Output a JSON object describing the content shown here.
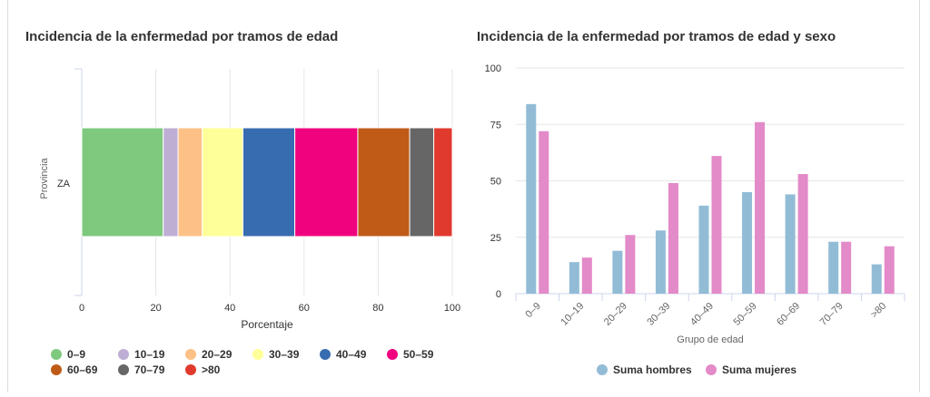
{
  "colors": {
    "grid": "#e6e6e6",
    "axis": "#ccd6eb",
    "text": "#333333",
    "label": "#666666"
  },
  "chart_data": [
    {
      "type": "bar",
      "orientation": "horizontal-stacked",
      "title": "Incidencia de la enfermedad por tramos de edad",
      "ylabel": "Provincia",
      "xlabel": "Porcentaje",
      "categories": [
        "ZA"
      ],
      "xlim": [
        0,
        100
      ],
      "xticks": [
        0,
        20,
        40,
        60,
        80,
        100
      ],
      "grid": true,
      "legend_position": "bottom-left",
      "series": [
        {
          "name": "0–9",
          "color": "#7fc97f",
          "values": [
            22
          ]
        },
        {
          "name": "10–19",
          "color": "#beaed4",
          "values": [
            4
          ]
        },
        {
          "name": "20–29",
          "color": "#fdc086",
          "values": [
            6.5
          ]
        },
        {
          "name": "30–39",
          "color": "#ffff99",
          "values": [
            11
          ]
        },
        {
          "name": "40–49",
          "color": "#386cb0",
          "values": [
            14
          ]
        },
        {
          "name": "50–59",
          "color": "#f0027f",
          "values": [
            17
          ]
        },
        {
          "name": "60–69",
          "color": "#bf5b17",
          "values": [
            14
          ]
        },
        {
          "name": "70–79",
          "color": "#666666",
          "values": [
            6.5
          ]
        },
        {
          "name": ">80",
          "color": "#e03a2e",
          "values": [
            5
          ]
        }
      ]
    },
    {
      "type": "bar",
      "orientation": "vertical-grouped",
      "title": "Incidencia de la enfermedad por tramos de edad y sexo",
      "xlabel": "Grupo de edad",
      "ylabel": "",
      "categories": [
        "0–9",
        "10–19",
        "20–29",
        "30–39",
        "40–49",
        "50–59",
        "60–69",
        "70–79",
        ">80"
      ],
      "ylim": [
        0,
        100
      ],
      "yticks": [
        0,
        25,
        50,
        75,
        100
      ],
      "grid": true,
      "legend_position": "bottom-center",
      "series": [
        {
          "name": "Suma hombres",
          "color": "#92bcd6",
          "values": [
            84,
            14,
            19,
            28,
            39,
            45,
            44,
            23,
            13
          ]
        },
        {
          "name": "Suma mujeres",
          "color": "#e38ac8",
          "values": [
            72,
            16,
            26,
            49,
            61,
            76,
            53,
            23,
            21
          ]
        }
      ]
    }
  ]
}
